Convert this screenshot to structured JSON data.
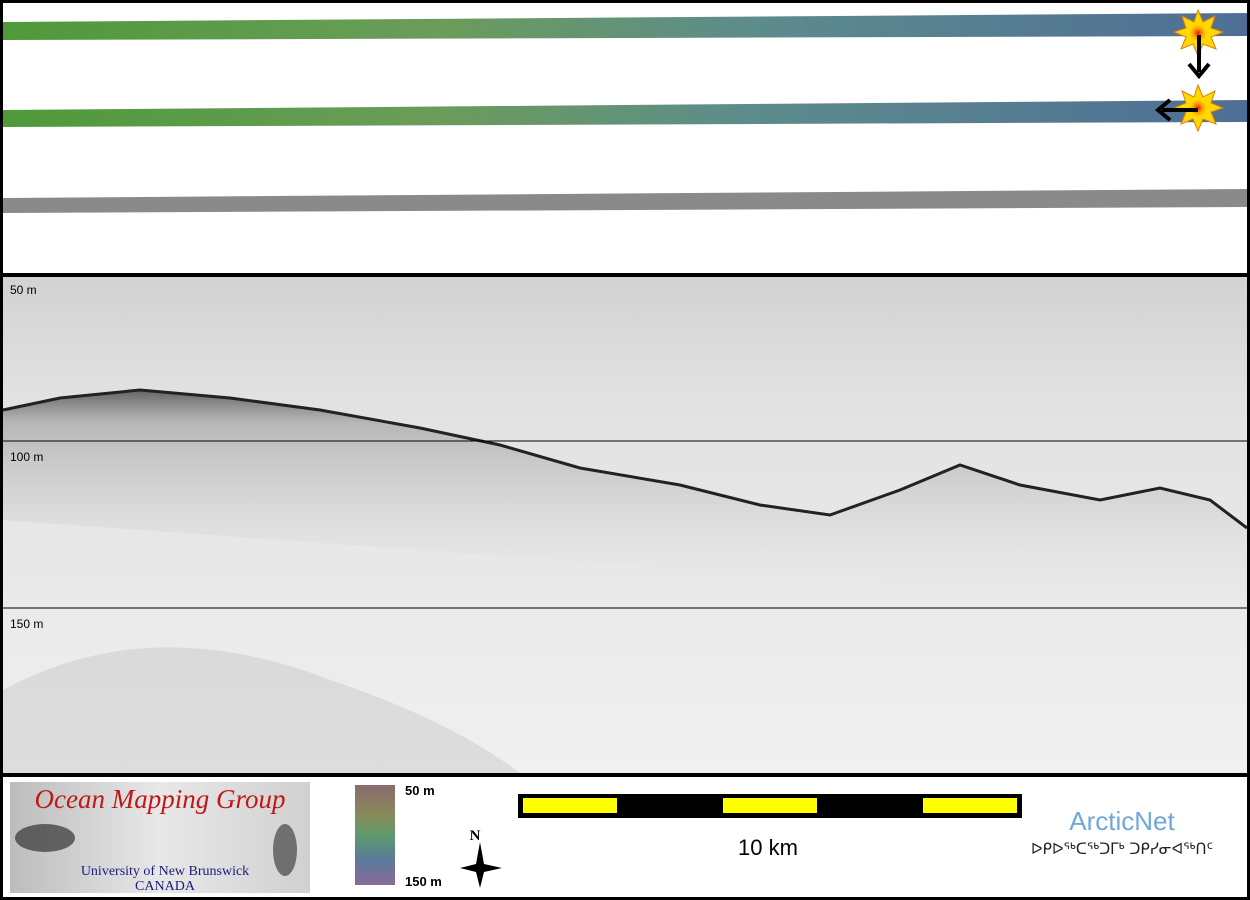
{
  "profile": {
    "depth_labels": [
      "50 m",
      "100 m",
      "150 m"
    ]
  },
  "footer": {
    "logo": {
      "title": "Ocean Mapping Group",
      "line1": "University of New Brunswick",
      "line2": "CANADA"
    },
    "colorbar": {
      "top": "50 m",
      "bottom": "150 m"
    },
    "north": "N",
    "scale": "10 km",
    "partner": {
      "name": "ArcticNet",
      "subtitle": "ᐅᑭᐅᖅᑕᖅᑐᒥᒃ ᑐᑭᓯᓂᐊᖅᑎᑦ"
    }
  }
}
